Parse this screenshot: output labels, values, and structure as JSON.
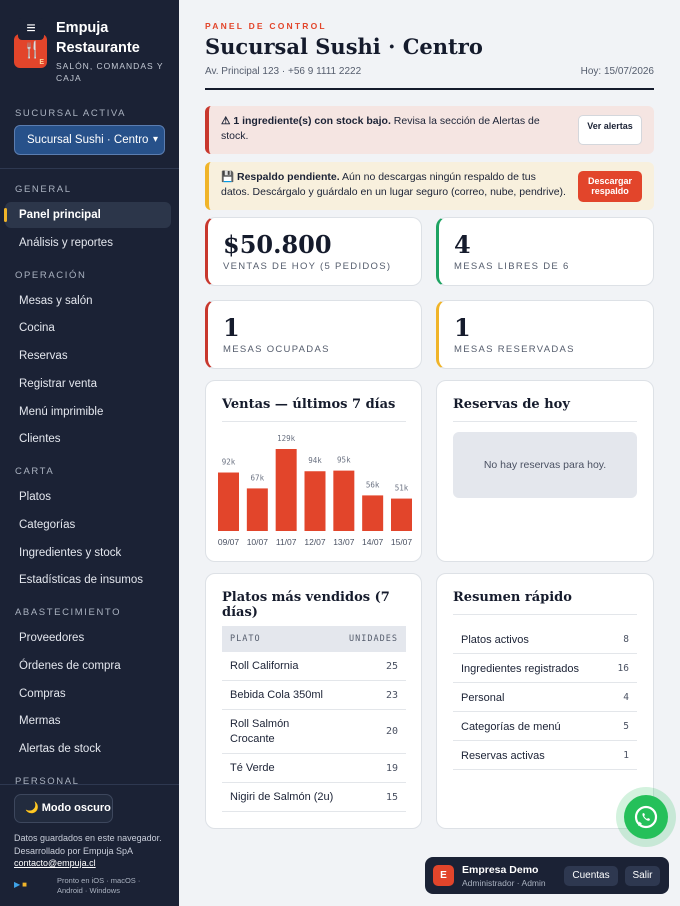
{
  "app": {
    "name": "Empuja Restaurante",
    "subtitle": "SALÓN, COMANDAS Y CAJA",
    "logo_letter": "E"
  },
  "sidebar": {
    "branch_label": "SUCURSAL ACTIVA",
    "branch_value": "Sucursal Sushi · Centro",
    "sections": [
      {
        "label": "GENERAL",
        "items": [
          "Panel principal",
          "Análisis y reportes"
        ]
      },
      {
        "label": "OPERACIÓN",
        "items": [
          "Mesas y salón",
          "Cocina",
          "Reservas",
          "Registrar venta",
          "Menú imprimible",
          "Clientes"
        ]
      },
      {
        "label": "CARTA",
        "items": [
          "Platos",
          "Categorías",
          "Ingredientes y stock",
          "Estadísticas de insumos"
        ]
      },
      {
        "label": "ABASTECIMIENTO",
        "items": [
          "Proveedores",
          "Órdenes de compra",
          "Compras",
          "Mermas",
          "Alertas de stock"
        ]
      },
      {
        "label": "PERSONAL",
        "items": []
      }
    ],
    "active_item": "Panel principal",
    "dark_mode_label": "Modo oscuro",
    "footer_line1": "Datos guardados en este navegador.",
    "footer_line2": "Desarrollado por Empuja SpA",
    "footer_email": "contacto@empuja.cl",
    "platforms_line1": "Pronto en iOS · macOS ·",
    "platforms_line2": "Android · Windows"
  },
  "header": {
    "eyebrow": "PANEL DE CONTROL",
    "title": "Sucursal Sushi · Centro",
    "address": "Av. Principal 123 · +56 9 1111 2222",
    "date": "Hoy: 15/07/2026"
  },
  "alerts": {
    "stock_bold": "⚠ 1 ingrediente(s) con stock bajo.",
    "stock_text": " Revisa la sección de Alertas de stock.",
    "stock_button": "Ver alertas",
    "backup_icon": "💾",
    "backup_bold": "Respaldo pendiente.",
    "backup_text": " Aún no descargas ningún respaldo de tus datos. Descárgalo y guárdalo en un lugar seguro (correo, nube, pendrive).",
    "backup_button": "Descargar respaldo"
  },
  "stats": [
    {
      "value": "$50.800",
      "label": "VENTAS DE HOY (5 PEDIDOS)",
      "color": "#c8372d"
    },
    {
      "value": "4",
      "label": "MESAS LIBRES DE 6",
      "color": "#1ea362"
    },
    {
      "value": "1",
      "label": "MESAS OCUPADAS",
      "color": "#c8372d"
    },
    {
      "value": "1",
      "label": "MESAS RESERVADAS",
      "color": "#f0b429"
    }
  ],
  "sales_card": {
    "title": "Ventas — últimos 7 días"
  },
  "chart_data": {
    "type": "bar",
    "categories": [
      "09/07",
      "10/07",
      "11/07",
      "12/07",
      "13/07",
      "14/07",
      "15/07"
    ],
    "values": [
      92,
      67,
      129,
      94,
      95,
      56,
      51
    ],
    "value_labels": [
      "92k",
      "67k",
      "129k",
      "94k",
      "95k",
      "56k",
      "51k"
    ],
    "ylim": [
      0,
      129
    ],
    "bar_color": "#e2452b",
    "grid": false
  },
  "reservations_card": {
    "title": "Reservas de hoy",
    "empty_text": "No hay reservas para hoy."
  },
  "top_dishes": {
    "title": "Platos más vendidos (7 días)",
    "col_dish": "PLATO",
    "col_units": "UNIDADES",
    "rows": [
      {
        "name": "Roll California",
        "units": "25"
      },
      {
        "name": "Bebida Cola 350ml",
        "units": "23"
      },
      {
        "name": "Roll Salmón Crocante",
        "units": "20"
      },
      {
        "name": "Té Verde",
        "units": "19"
      },
      {
        "name": "Nigiri de Salmón (2u)",
        "units": "15"
      }
    ]
  },
  "summary": {
    "title": "Resumen rápido",
    "rows": [
      {
        "name": "Platos activos",
        "value": "8"
      },
      {
        "name": "Ingredientes registrados",
        "value": "16"
      },
      {
        "name": "Personal",
        "value": "4"
      },
      {
        "name": "Categorías de menú",
        "value": "5"
      },
      {
        "name": "Reservas activas",
        "value": "1"
      }
    ]
  },
  "user": {
    "avatar_letter": "E",
    "name": "Empresa Demo",
    "role": "Administrador · Admin",
    "accounts_button": "Cuentas",
    "logout_button": "Salir"
  }
}
